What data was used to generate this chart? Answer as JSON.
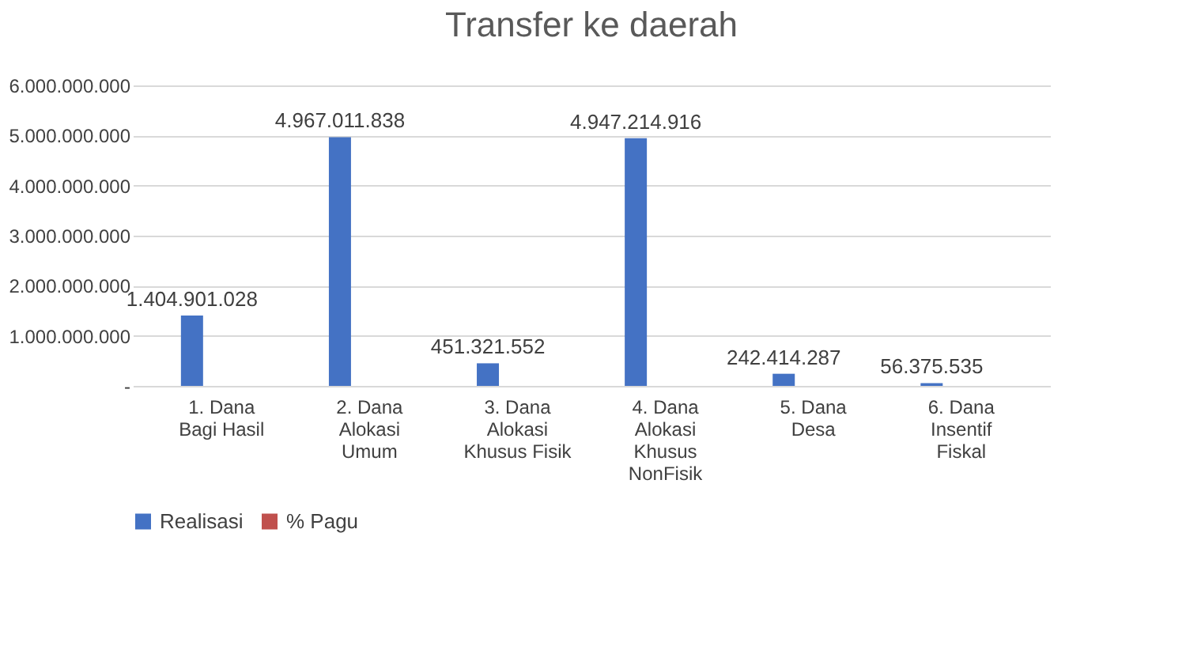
{
  "chart_data": {
    "type": "bar",
    "title": "Transfer ke daerah",
    "categories": [
      "1. Dana\nBagi Hasil",
      "2. Dana\nAlokasi\nUmum",
      "3. Dana\nAlokasi\nKhusus Fisik",
      "4.  Dana\nAlokasi\nKhusus\nNonFisik",
      "5.  Dana\nDesa",
      "6.  Dana\nInsentif\nFiskal"
    ],
    "series": [
      {
        "name": "Realisasi",
        "color": "#4472c4",
        "values": [
          1404901028,
          4967011838,
          451321552,
          4947214916,
          242414287,
          56375535
        ]
      },
      {
        "name": "% Pagu",
        "color": "#c0504d",
        "values": [
          null,
          null,
          null,
          null,
          null,
          null
        ]
      }
    ],
    "ylim": [
      0,
      6000000000
    ],
    "yticks": [
      {
        "value": 0,
        "label": "-"
      },
      {
        "value": 1000000000,
        "label": "1.000.000.000"
      },
      {
        "value": 2000000000,
        "label": "2.000.000.000"
      },
      {
        "value": 3000000000,
        "label": "3.000.000.000"
      },
      {
        "value": 4000000000,
        "label": "4.000.000.000"
      },
      {
        "value": 5000000000,
        "label": "5.000.000.000"
      },
      {
        "value": 6000000000,
        "label": "6.000.000.000"
      }
    ],
    "value_labels": [
      "1.404.901.028",
      "4.967.011.838",
      "451.321.552",
      "4.947.214.916",
      "242.414.287",
      "56.375.535"
    ],
    "grid": "y",
    "legend": "bottom"
  }
}
